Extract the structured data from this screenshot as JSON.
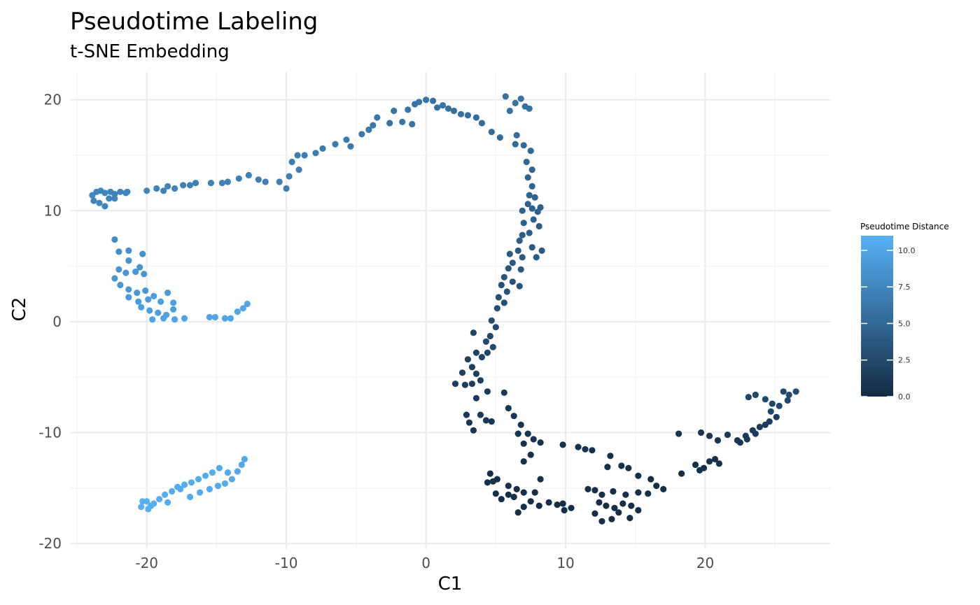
{
  "chart_data": {
    "type": "scatter",
    "title": "Pseudotime Labeling",
    "subtitle": "t-SNE Embedding",
    "xlabel": "C1",
    "ylabel": "C2",
    "xlim": [
      -25.5,
      29
    ],
    "ylim": [
      -20.5,
      22.5
    ],
    "x_ticks": [
      -20,
      -10,
      0,
      10,
      20
    ],
    "y_ticks": [
      -20,
      -10,
      0,
      10,
      20
    ],
    "grid": true,
    "legend": {
      "title": "Pseudotime Distance",
      "position": "right",
      "range": [
        0,
        11
      ],
      "ticks": [
        "0.0",
        "2.5",
        "5.0",
        "7.5",
        "10.0"
      ],
      "tick_values": [
        0,
        2.5,
        5,
        7.5,
        10
      ],
      "color_low": "#132b43",
      "color_high": "#56b1f7"
    },
    "points": [
      [
        -23.9,
        11.4,
        7.6
      ],
      [
        -23.6,
        11.7,
        7.5
      ],
      [
        -23.3,
        11.8,
        7.4
      ],
      [
        -23.0,
        11.6,
        7.4
      ],
      [
        -22.6,
        11.7,
        7.3
      ],
      [
        -22.3,
        11.5,
        7.3
      ],
      [
        -21.9,
        11.7,
        7.3
      ],
      [
        -21.5,
        11.6,
        7.3
      ],
      [
        -23.8,
        10.9,
        7.5
      ],
      [
        -23.4,
        10.7,
        7.5
      ],
      [
        -23.0,
        10.4,
        7.4
      ],
      [
        -22.7,
        11.1,
        7.3
      ],
      [
        -22.3,
        11.1,
        7.3
      ],
      [
        -21.4,
        11.7,
        7.3
      ],
      [
        -20.0,
        11.8,
        7.5
      ],
      [
        -19.3,
        12.0,
        7.4
      ],
      [
        -18.8,
        11.8,
        7.3
      ],
      [
        -18.5,
        12.2,
        7.2
      ],
      [
        -18.0,
        12.0,
        7.2
      ],
      [
        -17.4,
        12.3,
        7.1
      ],
      [
        -16.9,
        12.3,
        7.1
      ],
      [
        -16.5,
        12.5,
        7.1
      ],
      [
        -15.4,
        12.5,
        7.1
      ],
      [
        -14.6,
        12.5,
        7.1
      ],
      [
        -14.2,
        12.6,
        7.1
      ],
      [
        -13.4,
        12.9,
        7.1
      ],
      [
        -12.7,
        13.2,
        7.0
      ],
      [
        -12.0,
        12.8,
        7.0
      ],
      [
        -11.5,
        12.6,
        7.0
      ],
      [
        -10.5,
        12.6,
        7.0
      ],
      [
        -10.0,
        12.0,
        6.9
      ],
      [
        -9.8,
        13.1,
        6.9
      ],
      [
        -9.1,
        13.7,
        6.9
      ],
      [
        -9.6,
        14.4,
        6.8
      ],
      [
        -9.2,
        15.0,
        6.8
      ],
      [
        -8.7,
        15.0,
        6.7
      ],
      [
        -7.9,
        15.2,
        6.7
      ],
      [
        -7.4,
        15.6,
        6.6
      ],
      [
        -6.5,
        16.0,
        6.5
      ],
      [
        -5.7,
        16.4,
        6.5
      ],
      [
        -5.4,
        15.8,
        6.4
      ],
      [
        -4.6,
        16.9,
        6.4
      ],
      [
        -4.1,
        17.3,
        6.3
      ],
      [
        -3.8,
        17.7,
        6.2
      ],
      [
        -3.5,
        18.4,
        6.2
      ],
      [
        -2.6,
        17.9,
        6.1
      ],
      [
        -2.3,
        19.0,
        6.1
      ],
      [
        -1.7,
        18.0,
        6.0
      ],
      [
        -1.3,
        19.1,
        6.0
      ],
      [
        -1.0,
        17.8,
        6.0
      ],
      [
        -0.8,
        19.6,
        5.9
      ],
      [
        -0.5,
        19.8,
        5.9
      ],
      [
        0.0,
        20.0,
        5.9
      ],
      [
        0.5,
        19.9,
        5.8
      ],
      [
        0.8,
        19.3,
        5.8
      ],
      [
        1.2,
        19.5,
        5.8
      ],
      [
        1.6,
        19.2,
        5.8
      ],
      [
        2.0,
        19.0,
        5.7
      ],
      [
        2.5,
        18.7,
        5.7
      ],
      [
        3.0,
        18.6,
        5.6
      ],
      [
        3.6,
        18.4,
        5.5
      ],
      [
        4.0,
        17.9,
        5.4
      ],
      [
        4.7,
        17.1,
        5.3
      ],
      [
        5.3,
        16.6,
        5.2
      ],
      [
        5.7,
        20.3,
        5.8
      ],
      [
        6.0,
        19.0,
        5.8
      ],
      [
        6.4,
        19.7,
        5.8
      ],
      [
        6.8,
        20.1,
        5.8
      ],
      [
        7.1,
        19.4,
        5.7
      ],
      [
        7.4,
        19.2,
        5.7
      ],
      [
        6.5,
        16.8,
        5.4
      ],
      [
        6.4,
        16.0,
        5.3
      ],
      [
        7.0,
        15.9,
        5.2
      ],
      [
        7.5,
        15.4,
        5.1
      ],
      [
        7.2,
        14.4,
        5.0
      ],
      [
        7.6,
        13.7,
        4.9
      ],
      [
        7.3,
        13.0,
        4.8
      ],
      [
        7.6,
        12.2,
        4.8
      ],
      [
        7.4,
        11.4,
        4.7
      ],
      [
        7.8,
        11.2,
        4.7
      ],
      [
        7.3,
        10.6,
        4.6
      ],
      [
        6.9,
        10.0,
        4.6
      ],
      [
        7.6,
        10.2,
        4.5
      ],
      [
        8.0,
        9.9,
        4.5
      ],
      [
        8.2,
        10.3,
        4.5
      ],
      [
        7.0,
        8.9,
        4.4
      ],
      [
        7.7,
        9.2,
        4.4
      ],
      [
        8.1,
        8.6,
        4.3
      ],
      [
        6.9,
        7.8,
        4.2
      ],
      [
        7.4,
        8.0,
        4.2
      ],
      [
        6.7,
        7.3,
        4.1
      ],
      [
        7.6,
        6.7,
        4.0
      ],
      [
        6.6,
        6.4,
        3.9
      ],
      [
        6.0,
        6.1,
        3.9
      ],
      [
        6.9,
        5.8,
        3.8
      ],
      [
        7.9,
        5.8,
        3.8
      ],
      [
        8.3,
        6.4,
        3.9
      ],
      [
        6.2,
        5.3,
        3.7
      ],
      [
        5.9,
        4.8,
        3.6
      ],
      [
        6.8,
        4.7,
        3.6
      ],
      [
        5.6,
        4.0,
        3.5
      ],
      [
        6.2,
        3.6,
        3.4
      ],
      [
        6.7,
        3.2,
        3.3
      ],
      [
        5.4,
        3.3,
        3.3
      ],
      [
        5.8,
        2.7,
        3.2
      ],
      [
        5.2,
        2.2,
        3.1
      ],
      [
        5.6,
        1.7,
        3.0
      ],
      [
        5.1,
        1.2,
        2.9
      ],
      [
        4.7,
        0.1,
        2.8
      ],
      [
        5.0,
        -0.5,
        2.6
      ],
      [
        4.6,
        -1.3,
        2.5
      ],
      [
        4.3,
        -1.8,
        2.4
      ],
      [
        4.8,
        -2.3,
        2.3
      ],
      [
        4.4,
        -2.8,
        2.2
      ],
      [
        4.0,
        -3.2,
        2.1
      ],
      [
        3.6,
        -2.8,
        2.0
      ],
      [
        3.4,
        -1.0,
        2.1
      ],
      [
        3.0,
        -3.4,
        1.9
      ],
      [
        3.3,
        -4.1,
        1.8
      ],
      [
        3.6,
        -4.7,
        1.7
      ],
      [
        2.6,
        -4.6,
        1.8
      ],
      [
        3.9,
        -5.3,
        1.6
      ],
      [
        3.3,
        -5.6,
        1.5
      ],
      [
        2.8,
        -5.7,
        1.5
      ],
      [
        2.1,
        -5.6,
        1.5
      ],
      [
        4.4,
        -6.3,
        1.4
      ],
      [
        5.6,
        -6.4,
        1.3
      ],
      [
        3.6,
        -6.9,
        1.3
      ],
      [
        2.9,
        -8.4,
        1.2
      ],
      [
        3.1,
        -9.1,
        1.1
      ],
      [
        3.4,
        -9.8,
        1.0
      ],
      [
        3.9,
        -8.4,
        1.2
      ],
      [
        4.3,
        -8.9,
        1.1
      ],
      [
        4.7,
        -9.0,
        1.0
      ],
      [
        5.9,
        -7.8,
        1.1
      ],
      [
        6.3,
        -8.5,
        1.0
      ],
      [
        6.8,
        -9.3,
        0.9
      ],
      [
        7.3,
        -10.1,
        0.8
      ],
      [
        7.7,
        -10.6,
        0.7
      ],
      [
        8.2,
        -10.9,
        0.7
      ],
      [
        6.6,
        -10.1,
        0.8
      ],
      [
        7.0,
        -11.0,
        0.7
      ],
      [
        7.5,
        -12.0,
        0.6
      ],
      [
        7.0,
        -12.6,
        0.6
      ],
      [
        9.8,
        -11.1,
        0.6
      ],
      [
        10.9,
        -11.3,
        0.6
      ],
      [
        11.4,
        -11.5,
        0.6
      ],
      [
        11.9,
        -11.6,
        0.6
      ],
      [
        13.2,
        -12.1,
        0.5
      ],
      [
        13.0,
        -13.1,
        0.5
      ],
      [
        14.0,
        -13.0,
        0.5
      ],
      [
        14.5,
        -13.2,
        0.5
      ],
      [
        15.2,
        -13.9,
        0.4
      ],
      [
        16.1,
        -14.2,
        0.4
      ],
      [
        16.5,
        -14.8,
        0.4
      ],
      [
        17.0,
        -15.1,
        0.4
      ],
      [
        15.9,
        -15.5,
        0.4
      ],
      [
        15.2,
        -15.4,
        0.4
      ],
      [
        14.3,
        -15.6,
        0.4
      ],
      [
        13.4,
        -15.3,
        0.4
      ],
      [
        12.6,
        -15.6,
        0.4
      ],
      [
        12.1,
        -15.2,
        0.4
      ],
      [
        11.6,
        -15.1,
        0.4
      ],
      [
        12.4,
        -16.3,
        0.3
      ],
      [
        12.9,
        -16.6,
        0.3
      ],
      [
        13.5,
        -16.8,
        0.3
      ],
      [
        14.1,
        -16.4,
        0.3
      ],
      [
        14.7,
        -16.6,
        0.3
      ],
      [
        12.1,
        -17.3,
        0.3
      ],
      [
        12.6,
        -18.0,
        0.3
      ],
      [
        13.3,
        -17.8,
        0.3
      ],
      [
        13.8,
        -17.2,
        0.3
      ],
      [
        14.6,
        -17.7,
        0.3
      ],
      [
        15.2,
        -17.0,
        0.3
      ],
      [
        10.4,
        -16.8,
        0.3
      ],
      [
        9.9,
        -17.0,
        0.3
      ],
      [
        9.4,
        -16.5,
        0.3
      ],
      [
        8.8,
        -16.3,
        0.3
      ],
      [
        8.1,
        -16.6,
        0.3
      ],
      [
        7.5,
        -16.2,
        0.3
      ],
      [
        7.0,
        -16.7,
        0.3
      ],
      [
        6.6,
        -17.2,
        0.3
      ],
      [
        6.3,
        -15.8,
        0.4
      ],
      [
        5.9,
        -15.6,
        0.4
      ],
      [
        5.4,
        -16.0,
        0.4
      ],
      [
        5.0,
        -15.5,
        0.4
      ],
      [
        4.8,
        -14.4,
        0.5
      ],
      [
        4.4,
        -14.5,
        0.5
      ],
      [
        4.6,
        -13.7,
        0.5
      ],
      [
        5.1,
        -14.2,
        0.5
      ],
      [
        5.9,
        -14.8,
        0.5
      ],
      [
        6.5,
        -15.1,
        0.5
      ],
      [
        7.0,
        -15.4,
        0.4
      ],
      [
        7.8,
        -15.4,
        0.4
      ],
      [
        8.2,
        -14.2,
        0.5
      ],
      [
        9.8,
        -16.4,
        0.3
      ],
      [
        18.3,
        -13.7,
        0.3
      ],
      [
        18.1,
        -10.1,
        0.8
      ],
      [
        19.3,
        -12.9,
        0.4
      ],
      [
        19.6,
        -13.4,
        0.4
      ],
      [
        19.9,
        -13.2,
        0.4
      ],
      [
        20.3,
        -12.6,
        0.5
      ],
      [
        20.7,
        -12.4,
        0.5
      ],
      [
        21.0,
        -12.8,
        0.5
      ],
      [
        19.7,
        -10.0,
        1.0
      ],
      [
        20.3,
        -10.3,
        1.0
      ],
      [
        20.9,
        -10.7,
        1.0
      ],
      [
        21.6,
        -10.2,
        1.1
      ],
      [
        22.3,
        -10.7,
        1.1
      ],
      [
        22.9,
        -10.3,
        1.2
      ],
      [
        23.4,
        -9.8,
        1.3
      ],
      [
        23.9,
        -9.5,
        1.4
      ],
      [
        24.6,
        -9.0,
        1.5
      ],
      [
        25.1,
        -8.6,
        1.5
      ],
      [
        24.3,
        -9.3,
        1.4
      ],
      [
        23.6,
        -10.1,
        1.3
      ],
      [
        23.0,
        -10.6,
        1.2
      ],
      [
        22.5,
        -10.9,
        1.1
      ],
      [
        23.1,
        -6.8,
        2.2
      ],
      [
        23.6,
        -6.6,
        2.3
      ],
      [
        24.3,
        -7.0,
        2.3
      ],
      [
        24.8,
        -7.4,
        2.2
      ],
      [
        25.6,
        -6.3,
        2.5
      ],
      [
        26.0,
        -6.6,
        2.6
      ],
      [
        26.5,
        -6.3,
        2.7
      ],
      [
        25.9,
        -7.1,
        2.5
      ],
      [
        25.3,
        -7.6,
        2.4
      ],
      [
        24.7,
        -8.1,
        2.2
      ],
      [
        -22.3,
        7.4,
        8.0
      ],
      [
        -22.0,
        6.3,
        8.2
      ],
      [
        -21.3,
        6.4,
        8.3
      ],
      [
        -20.3,
        6.1,
        8.3
      ],
      [
        -21.3,
        5.5,
        8.5
      ],
      [
        -22.0,
        4.7,
        8.6
      ],
      [
        -21.5,
        4.4,
        8.7
      ],
      [
        -20.8,
        4.5,
        8.7
      ],
      [
        -20.5,
        4.9,
        8.6
      ],
      [
        -20.2,
        4.3,
        8.7
      ],
      [
        -22.3,
        3.9,
        8.8
      ],
      [
        -21.9,
        3.3,
        8.9
      ],
      [
        -21.3,
        2.9,
        9.0
      ],
      [
        -20.7,
        2.6,
        9.1
      ],
      [
        -20.1,
        2.8,
        9.1
      ],
      [
        -21.3,
        2.2,
        9.2
      ],
      [
        -20.6,
        1.8,
        9.3
      ],
      [
        -19.9,
        2.0,
        9.3
      ],
      [
        -19.5,
        2.3,
        9.3
      ],
      [
        -19.0,
        1.8,
        9.4
      ],
      [
        -18.5,
        2.6,
        9.3
      ],
      [
        -18.1,
        1.7,
        9.4
      ],
      [
        -20.4,
        1.3,
        9.5
      ],
      [
        -19.8,
        1.0,
        9.6
      ],
      [
        -19.2,
        0.8,
        9.6
      ],
      [
        -18.6,
        0.6,
        9.7
      ],
      [
        -18.1,
        1.1,
        9.6
      ],
      [
        -17.3,
        0.3,
        9.8
      ],
      [
        -18.0,
        0.2,
        9.8
      ],
      [
        -18.8,
        0.3,
        9.8
      ],
      [
        -19.6,
        0.2,
        9.8
      ],
      [
        -15.5,
        0.4,
        10.0
      ],
      [
        -15.1,
        0.4,
        10.0
      ],
      [
        -14.4,
        0.3,
        10.0
      ],
      [
        -14.0,
        0.3,
        10.0
      ],
      [
        -13.5,
        0.9,
        10.1
      ],
      [
        -13.1,
        1.2,
        10.1
      ],
      [
        -12.8,
        1.6,
        10.1
      ],
      [
        -20.0,
        -16.2,
        10.8
      ],
      [
        -20.4,
        -16.7,
        10.9
      ],
      [
        -19.9,
        -16.9,
        10.9
      ],
      [
        -19.5,
        -16.4,
        10.8
      ],
      [
        -19.1,
        -16.0,
        10.8
      ],
      [
        -18.7,
        -15.6,
        10.7
      ],
      [
        -18.2,
        -15.3,
        10.7
      ],
      [
        -17.8,
        -14.9,
        10.6
      ],
      [
        -17.3,
        -14.7,
        10.6
      ],
      [
        -16.8,
        -14.5,
        10.6
      ],
      [
        -16.3,
        -14.2,
        10.5
      ],
      [
        -15.8,
        -13.9,
        10.5
      ],
      [
        -15.3,
        -13.6,
        10.5
      ],
      [
        -14.8,
        -13.2,
        10.4
      ],
      [
        -14.2,
        -13.6,
        10.4
      ],
      [
        -13.9,
        -14.2,
        10.4
      ],
      [
        -14.4,
        -14.6,
        10.4
      ],
      [
        -14.9,
        -14.8,
        10.5
      ],
      [
        -15.5,
        -15.1,
        10.5
      ],
      [
        -16.2,
        -15.4,
        10.6
      ],
      [
        -16.9,
        -15.8,
        10.6
      ],
      [
        -18.5,
        -16.3,
        10.7
      ],
      [
        -13.5,
        -13.5,
        10.3
      ],
      [
        -13.2,
        -12.9,
        10.3
      ],
      [
        -13.0,
        -12.4,
        10.2
      ],
      [
        -20.3,
        -16.2,
        10.8
      ],
      [
        -19.7,
        -16.6,
        10.9
      ],
      [
        -17.6,
        -15.1,
        10.7
      ]
    ]
  }
}
